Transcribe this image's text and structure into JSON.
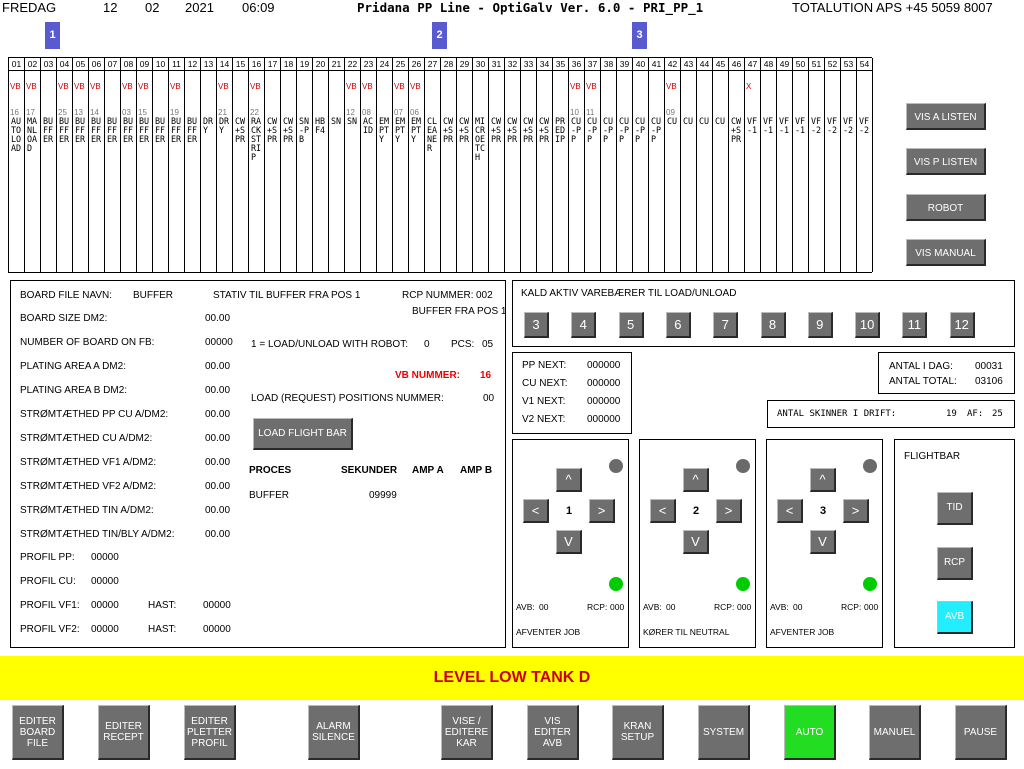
{
  "header": {
    "day": "FREDAG",
    "dd": "12",
    "mm": "02",
    "yyyy": "2021",
    "time": "06:09",
    "title": "Pridana PP Line - OptiGalv Ver. 6.0 - PRI_PP_1",
    "company": "TOTALUTION APS +45 5059 8007"
  },
  "markers": [
    "1",
    "2",
    "3"
  ],
  "stations": [
    {
      "num": "01",
      "flag": "VB",
      "n2": "16",
      "text": "AUTOLOAD"
    },
    {
      "num": "02",
      "flag": "VB",
      "n2": "17",
      "text": "MANLOAD"
    },
    {
      "num": "03",
      "flag": "",
      "n2": "",
      "text": "BUFFER"
    },
    {
      "num": "04",
      "flag": "VB",
      "n2": "25",
      "text": "BUFFER"
    },
    {
      "num": "05",
      "flag": "VB",
      "n2": "13",
      "text": "BUFFER"
    },
    {
      "num": "06",
      "flag": "VB",
      "n2": "14",
      "text": "BUFFER"
    },
    {
      "num": "07",
      "flag": "",
      "n2": "",
      "text": "BUFFER"
    },
    {
      "num": "08",
      "flag": "VB",
      "n2": "03",
      "text": "BUFFER"
    },
    {
      "num": "09",
      "flag": "VB",
      "n2": "15",
      "text": "BUFFER"
    },
    {
      "num": "10",
      "flag": "",
      "n2": "",
      "text": "BUFFER"
    },
    {
      "num": "11",
      "flag": "VB",
      "n2": "19",
      "text": "BUFFER"
    },
    {
      "num": "12",
      "flag": "",
      "n2": "",
      "text": "BUFFER"
    },
    {
      "num": "13",
      "flag": "",
      "n2": "",
      "text": "DRY"
    },
    {
      "num": "14",
      "flag": "VB",
      "n2": "21",
      "text": "DRY"
    },
    {
      "num": "15",
      "flag": "",
      "n2": "",
      "text": "CW+SPR"
    },
    {
      "num": "16",
      "flag": "VB",
      "n2": "22",
      "text": "RACKSTRIP"
    },
    {
      "num": "17",
      "flag": "",
      "n2": "",
      "text": "CW+SPR"
    },
    {
      "num": "18",
      "flag": "",
      "n2": "",
      "text": "CW+SPR"
    },
    {
      "num": "19",
      "flag": "",
      "n2": "",
      "text": "SN-PB"
    },
    {
      "num": "20",
      "flag": "",
      "n2": "",
      "text": "HBF4"
    },
    {
      "num": "21",
      "flag": "",
      "n2": "",
      "text": "SN"
    },
    {
      "num": "22",
      "flag": "VB",
      "n2": "12",
      "text": "SN"
    },
    {
      "num": "23",
      "flag": "VB",
      "n2": "08",
      "text": "ACID"
    },
    {
      "num": "24",
      "flag": "",
      "n2": "",
      "text": "EMPTY"
    },
    {
      "num": "25",
      "flag": "VB",
      "n2": "07",
      "text": "EMPTY"
    },
    {
      "num": "26",
      "flag": "VB",
      "n2": "06",
      "text": "EMPTY"
    },
    {
      "num": "27",
      "flag": "",
      "n2": "",
      "text": "CLEANER"
    },
    {
      "num": "28",
      "flag": "",
      "n2": "",
      "text": "CW+SPR"
    },
    {
      "num": "29",
      "flag": "",
      "n2": "",
      "text": "CW+SPR"
    },
    {
      "num": "30",
      "flag": "",
      "n2": "",
      "text": "MICROETCH"
    },
    {
      "num": "31",
      "flag": "",
      "n2": "",
      "text": "CW+SPR"
    },
    {
      "num": "32",
      "flag": "",
      "n2": "",
      "text": "CW+SPR"
    },
    {
      "num": "33",
      "flag": "",
      "n2": "",
      "text": "CW+SPR"
    },
    {
      "num": "34",
      "flag": "",
      "n2": "",
      "text": "CW+SPR"
    },
    {
      "num": "35",
      "flag": "",
      "n2": "",
      "text": "PREDIP"
    },
    {
      "num": "36",
      "flag": "VB",
      "n2": "10",
      "text": "CU-PP"
    },
    {
      "num": "37",
      "flag": "VB",
      "n2": "11",
      "text": "CU-PP"
    },
    {
      "num": "38",
      "flag": "",
      "n2": "",
      "text": "CU-PP"
    },
    {
      "num": "39",
      "flag": "",
      "n2": "",
      "text": "CU-PP"
    },
    {
      "num": "40",
      "flag": "",
      "n2": "",
      "text": "CU-PP"
    },
    {
      "num": "41",
      "flag": "",
      "n2": "",
      "text": "CU-PP"
    },
    {
      "num": "42",
      "flag": "VB",
      "n2": "09",
      "text": "CU"
    },
    {
      "num": "43",
      "flag": "",
      "n2": "",
      "text": "CU"
    },
    {
      "num": "44",
      "flag": "",
      "n2": "",
      "text": "CU"
    },
    {
      "num": "45",
      "flag": "",
      "n2": "",
      "text": "CU"
    },
    {
      "num": "46",
      "flag": "",
      "n2": "",
      "text": "CW+SPR"
    },
    {
      "num": "47",
      "flag": "X",
      "n2": "",
      "text": "VF-1"
    },
    {
      "num": "48",
      "flag": "",
      "n2": "",
      "text": "VF-1"
    },
    {
      "num": "49",
      "flag": "",
      "n2": "",
      "text": "VF-1"
    },
    {
      "num": "50",
      "flag": "",
      "n2": "",
      "text": "VF-1"
    },
    {
      "num": "51",
      "flag": "",
      "n2": "",
      "text": "VF-2"
    },
    {
      "num": "52",
      "flag": "",
      "n2": "",
      "text": "VF-2"
    },
    {
      "num": "53",
      "flag": "",
      "n2": "",
      "text": "VF-2"
    },
    {
      "num": "54",
      "flag": "",
      "n2": "",
      "text": "VF-2"
    }
  ],
  "right_buttons": [
    "VIS A LISTEN",
    "VIS P LISTEN",
    "ROBOT",
    "VIS MANUAL"
  ],
  "board": {
    "file_label": "BOARD FILE NAVN:",
    "file_value": "BUFFER",
    "stativ": "STATIV TIL BUFFER FRA POS 1",
    "rcp_label": "RCP NUMMER:",
    "rcp_value": "002",
    "rcp_desc": "BUFFER FRA POS 1",
    "rows": [
      {
        "label": "BOARD SIZE DM2:",
        "value": "00.00"
      },
      {
        "label": "NUMBER OF BOARD ON FB:",
        "value": "00000"
      },
      {
        "label": "PLATING AREA A DM2:",
        "value": "00.00"
      },
      {
        "label": "PLATING AREA B DM2:",
        "value": "00.00"
      },
      {
        "label": "STRØMTÆTHED PP CU A/DM2:",
        "value": "00.00"
      },
      {
        "label": "STRØMTÆTHED CU A/DM2:",
        "value": "00.00"
      },
      {
        "label": "STRØMTÆTHED VF1 A/DM2:",
        "value": "00.00"
      },
      {
        "label": "STRØMTÆTHED VF2 A/DM2:",
        "value": "00.00"
      },
      {
        "label": "STRØMTÆTHED TIN A/DM2:",
        "value": "00.00"
      },
      {
        "label": "STRØMTÆTHED TIN/BLY A/DM2:",
        "value": "00.00"
      }
    ],
    "profiles": [
      {
        "label": "PROFIL PP:",
        "value": "00000",
        "hast_label": "",
        "hast_value": ""
      },
      {
        "label": "PROFIL CU:",
        "value": "00000",
        "hast_label": "",
        "hast_value": ""
      },
      {
        "label": "PROFIL VF1:",
        "value": "00000",
        "hast_label": "HAST:",
        "hast_value": "00000"
      },
      {
        "label": "PROFIL VF2:",
        "value": "00000",
        "hast_label": "HAST:",
        "hast_value": "00000"
      }
    ],
    "load_robot_label": "1 = LOAD/UNLOAD WITH ROBOT:",
    "load_robot_value": "0",
    "pcs_label": "PCS:",
    "pcs_value": "05",
    "vb_label": "VB NUMMER:",
    "vb_value": "16",
    "load_pos_label": "LOAD (REQUEST) POSITIONS NUMMER:",
    "load_pos_value": "00",
    "load_flight_bar": "LOAD FLIGHT BAR",
    "proc_headers": [
      "PROCES",
      "SEKUNDER",
      "AMP A",
      "AMP B"
    ],
    "proc_row": {
      "proces": "BUFFER",
      "sekunder": "09999",
      "amp_a": "",
      "amp_b": ""
    }
  },
  "kald": {
    "title": "KALD AKTIV VAREBÆRER TIL LOAD/UNLOAD",
    "buttons": [
      "3",
      "4",
      "5",
      "6",
      "7",
      "8",
      "9",
      "10",
      "11",
      "12"
    ]
  },
  "next": [
    {
      "label": "PP NEXT:",
      "value": "000000"
    },
    {
      "label": "CU NEXT:",
      "value": "000000"
    },
    {
      "label": "V1 NEXT:",
      "value": "000000"
    },
    {
      "label": "V2 NEXT:",
      "value": "000000"
    }
  ],
  "antal": {
    "idag_label": "ANTAL I DAG:",
    "idag_value": "00031",
    "total_label": "ANTAL TOTAL:",
    "total_value": "03106"
  },
  "skinner": {
    "label": "ANTAL SKINNER I DRIFT:",
    "value": "19",
    "af_label": "AF:",
    "af_value": "25"
  },
  "cranes": [
    {
      "num": "1",
      "avb_label": "AVB:",
      "avb": "00",
      "rcp_label": "RCP:",
      "rcp": "000",
      "status": "AFVENTER JOB"
    },
    {
      "num": "2",
      "avb_label": "AVB:",
      "avb": "00",
      "rcp_label": "RCP:",
      "rcp": "000",
      "status": "KØRER TIL NEUTRAL"
    },
    {
      "num": "3",
      "avb_label": "AVB:",
      "avb": "00",
      "rcp_label": "RCP:",
      "rcp": "000",
      "status": "AFVENTER JOB"
    }
  ],
  "arrows": {
    "up": "^",
    "down": "V",
    "left": "<",
    "right": ">"
  },
  "flightbar": {
    "title": "FLIGHTBAR",
    "buttons": [
      "TID",
      "RCP",
      "AVB"
    ]
  },
  "alarm_banner": "LEVEL LOW TANK D",
  "bottom_buttons": [
    {
      "label": "EDITER\nBOARD\nFILE"
    },
    {
      "label": "EDITER\nRECEPT"
    },
    {
      "label": "EDITER\nPLETTER\nPROFIL"
    },
    {
      "label": "ALARM\nSILENCE"
    },
    {
      "label": "VISE /\nEDITERE\nKAR"
    },
    {
      "label": "VIS\nEDITER\nAVB"
    },
    {
      "label": "KRAN\nSETUP"
    },
    {
      "label": "SYSTEM"
    },
    {
      "label": "AUTO"
    },
    {
      "label": "MANUEL"
    },
    {
      "label": "PAUSE"
    }
  ],
  "colors": {
    "marker": "#5a5ad0",
    "button": "#6e6e6e",
    "alarm_bg": "#ffff00",
    "alarm_text": "#cc0000",
    "auto_active": "#22dd22",
    "avb_active": "#22eeff",
    "dot_gray": "#6a6a6a",
    "dot_green": "#00cc00",
    "vb_red": "#ee0000"
  }
}
